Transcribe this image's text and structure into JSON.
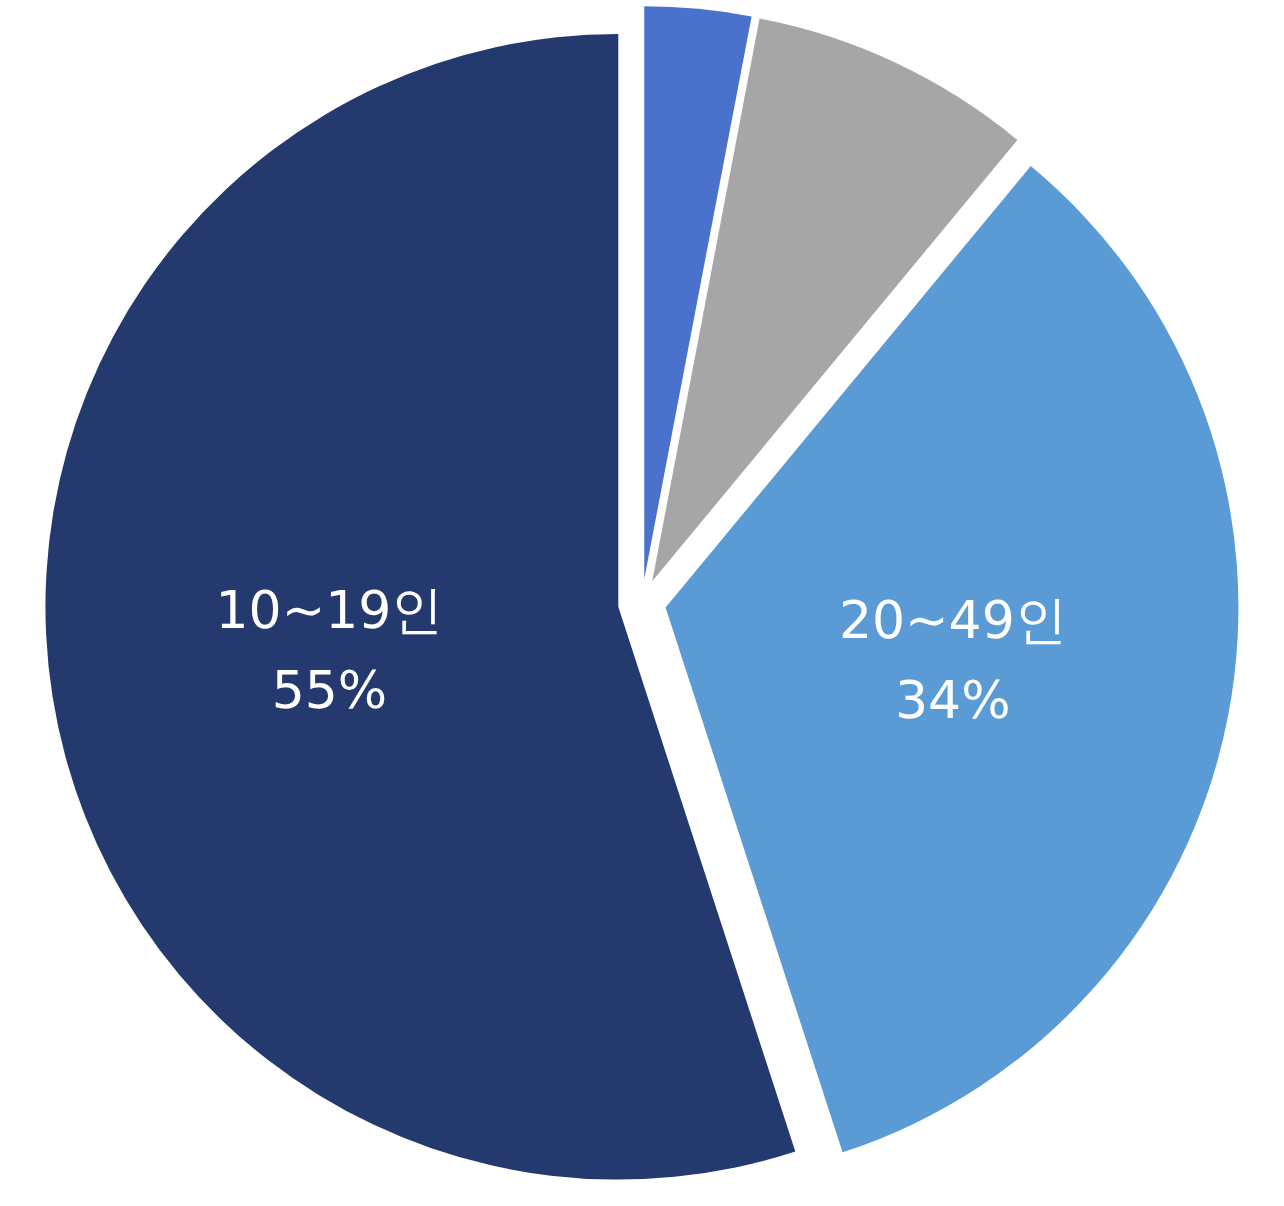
{
  "chart_data": {
    "type": "pie",
    "categories": [
      null,
      null,
      "20~49인",
      "10~19인"
    ],
    "values": [
      3,
      8,
      34,
      55
    ],
    "value_labels": [
      null,
      null,
      "34%",
      "55%"
    ],
    "colors": [
      "#4a72cc",
      "#a6a6a6",
      "#5b9bd5",
      "#243a6e"
    ]
  }
}
